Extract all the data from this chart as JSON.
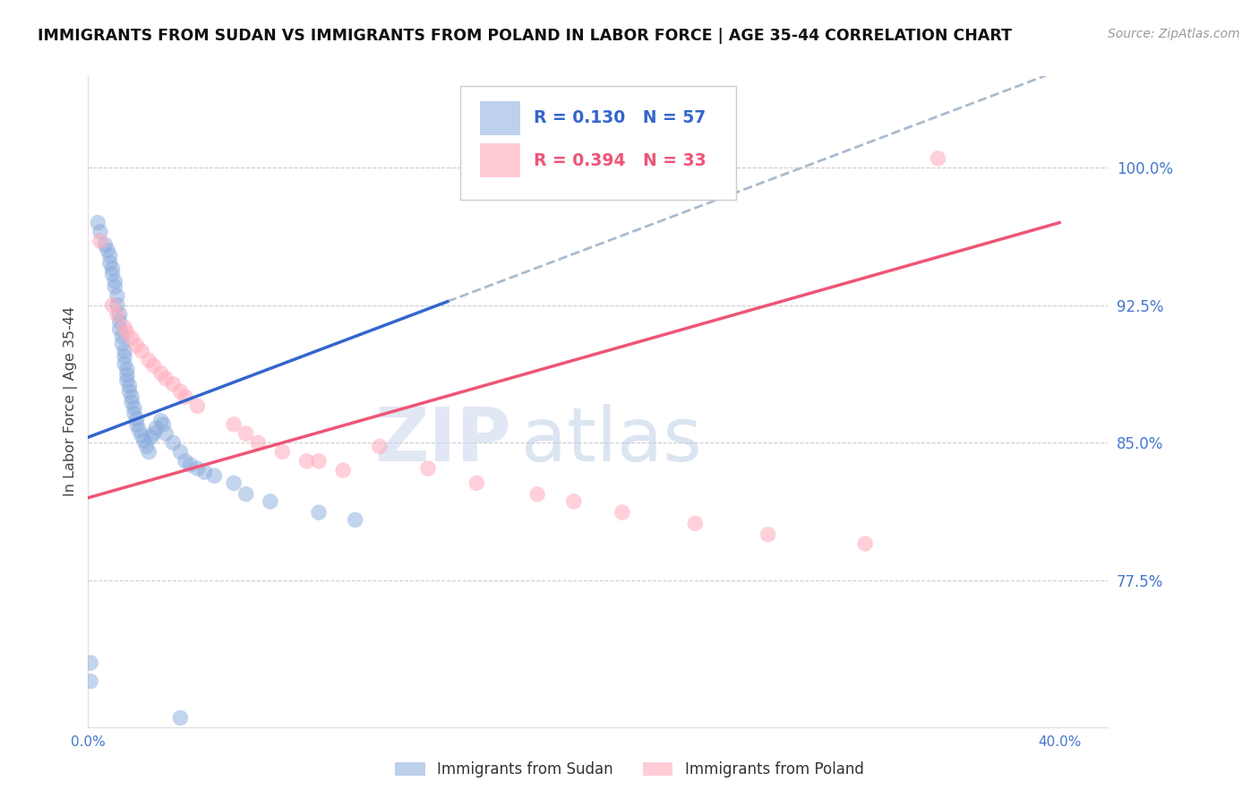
{
  "title": "IMMIGRANTS FROM SUDAN VS IMMIGRANTS FROM POLAND IN LABOR FORCE | AGE 35-44 CORRELATION CHART",
  "source": "Source: ZipAtlas.com",
  "ylabel": "In Labor Force | Age 35-44",
  "xlim": [
    0.0,
    0.42
  ],
  "ylim": [
    0.695,
    1.05
  ],
  "yticks": [
    0.775,
    0.85,
    0.925,
    1.0
  ],
  "yticklabels": [
    "77.5%",
    "85.0%",
    "92.5%",
    "100.0%"
  ],
  "xticks": [
    0.0,
    0.05,
    0.1,
    0.15,
    0.2,
    0.25,
    0.3,
    0.35,
    0.4
  ],
  "xticklabels": [
    "0.0%",
    "",
    "",
    "",
    "",
    "",
    "",
    "",
    "40.0%"
  ],
  "background_color": "#ffffff",
  "sudan_color": "#88aadd",
  "poland_color": "#ffaabb",
  "sudan_R": 0.13,
  "sudan_N": 57,
  "poland_R": 0.394,
  "poland_N": 33,
  "sudan_trend_color": "#3366cc",
  "poland_trend_color": "#ee5577",
  "dashed_line_color": "#aabbcc",
  "grid_color": "#cccccc",
  "tick_color": "#4477cc",
  "legend_sudan_label": "Immigrants from Sudan",
  "legend_poland_label": "Immigrants from Poland",
  "sudan_x": [
    0.001,
    0.004,
    0.005,
    0.007,
    0.008,
    0.009,
    0.009,
    0.01,
    0.01,
    0.011,
    0.011,
    0.012,
    0.012,
    0.013,
    0.013,
    0.013,
    0.014,
    0.014,
    0.015,
    0.015,
    0.015,
    0.016,
    0.016,
    0.016,
    0.017,
    0.017,
    0.018,
    0.018,
    0.019,
    0.019,
    0.02,
    0.02,
    0.021,
    0.022,
    0.023,
    0.024,
    0.025,
    0.026,
    0.027,
    0.028,
    0.03,
    0.031,
    0.032,
    0.035,
    0.038,
    0.04,
    0.042,
    0.045,
    0.048,
    0.052,
    0.06,
    0.065,
    0.075,
    0.095,
    0.11,
    0.001,
    0.038
  ],
  "sudan_y": [
    0.73,
    0.97,
    0.965,
    0.958,
    0.955,
    0.952,
    0.948,
    0.945,
    0.942,
    0.938,
    0.935,
    0.93,
    0.925,
    0.92,
    0.916,
    0.912,
    0.908,
    0.904,
    0.9,
    0.897,
    0.893,
    0.89,
    0.887,
    0.884,
    0.881,
    0.878,
    0.875,
    0.872,
    0.869,
    0.866,
    0.863,
    0.86,
    0.857,
    0.854,
    0.851,
    0.848,
    0.845,
    0.853,
    0.855,
    0.858,
    0.862,
    0.86,
    0.855,
    0.85,
    0.845,
    0.84,
    0.838,
    0.836,
    0.834,
    0.832,
    0.828,
    0.822,
    0.818,
    0.812,
    0.808,
    0.72,
    0.7
  ],
  "poland_x": [
    0.005,
    0.01,
    0.012,
    0.015,
    0.016,
    0.018,
    0.02,
    0.022,
    0.025,
    0.027,
    0.03,
    0.032,
    0.035,
    0.038,
    0.04,
    0.045,
    0.06,
    0.065,
    0.07,
    0.08,
    0.09,
    0.095,
    0.105,
    0.12,
    0.14,
    0.16,
    0.185,
    0.2,
    0.22,
    0.25,
    0.28,
    0.32,
    0.35
  ],
  "poland_y": [
    0.96,
    0.925,
    0.92,
    0.913,
    0.91,
    0.907,
    0.903,
    0.9,
    0.895,
    0.892,
    0.888,
    0.885,
    0.882,
    0.878,
    0.875,
    0.87,
    0.86,
    0.855,
    0.85,
    0.845,
    0.84,
    0.84,
    0.835,
    0.848,
    0.836,
    0.828,
    0.822,
    0.818,
    0.812,
    0.806,
    0.8,
    0.795,
    1.005
  ],
  "sudan_trend_x0": 0.0,
  "sudan_trend_y0": 0.853,
  "sudan_trend_x1": 0.15,
  "sudan_trend_y1": 0.928,
  "poland_trend_x0": 0.0,
  "poland_trend_y0": 0.82,
  "poland_trend_x1": 0.4,
  "poland_trend_y1": 0.97
}
